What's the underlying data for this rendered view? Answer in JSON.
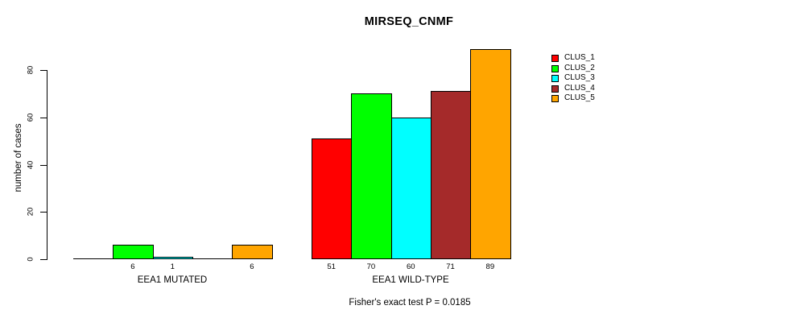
{
  "title": "MIRSEQ_CNMF",
  "footer": "Fisher's exact test P = 0.0185",
  "colors": {
    "clus_1": "#FF0000",
    "clus_2": "#00FF00",
    "clus_3": "#00FFFF",
    "clus_4": "#A52A2A",
    "clus_5": "#FFA500",
    "axis": "#000000",
    "background": "#FFFFFF"
  },
  "chart_data": {
    "type": "bar",
    "title": "MIRSEQ_CNMF",
    "xlabel": "",
    "ylabel": "number of cases",
    "ylim": [
      0,
      89
    ],
    "yticks": [
      0,
      20,
      40,
      60,
      80
    ],
    "grid": false,
    "legend_position": "right-outside",
    "categories": [
      "EEA1 MUTATED",
      "EEA1 WILD-TYPE"
    ],
    "series": [
      {
        "name": "CLUS_1",
        "color": "#FF0000",
        "values": [
          0,
          51
        ]
      },
      {
        "name": "CLUS_2",
        "color": "#00FF00",
        "values": [
          6,
          70
        ]
      },
      {
        "name": "CLUS_3",
        "color": "#00FFFF",
        "values": [
          1,
          60
        ]
      },
      {
        "name": "CLUS_4",
        "color": "#A52A2A",
        "values": [
          0,
          71
        ]
      },
      {
        "name": "CLUS_5",
        "color": "#FFA500",
        "values": [
          6,
          89
        ]
      }
    ],
    "bar_labels": [
      [
        "",
        "6",
        "1",
        "",
        "6"
      ],
      [
        "51",
        "70",
        "60",
        "71",
        "89"
      ]
    ],
    "annotation": "Fisher's exact test P = 0.0185"
  }
}
